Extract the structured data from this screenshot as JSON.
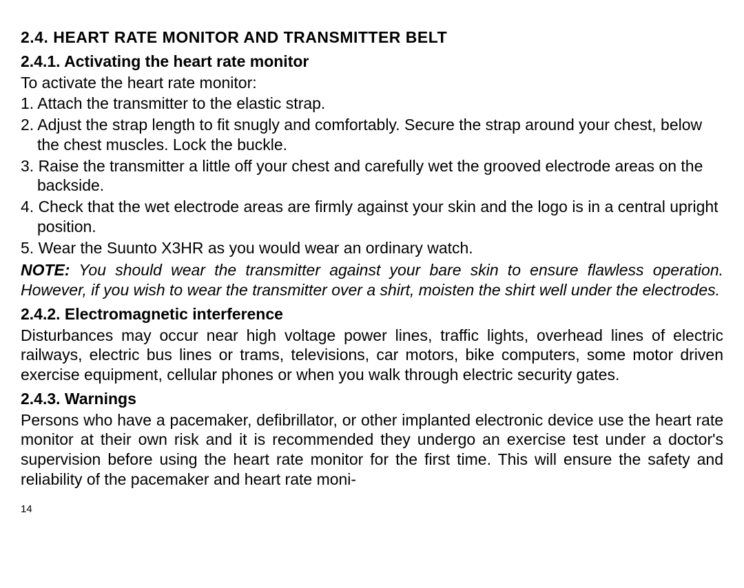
{
  "section": {
    "heading": "2.4. HEART RATE MONITOR AND TRANSMITTER BELT",
    "sub241": {
      "heading": "2.4.1. Activating the heart rate monitor",
      "intro": "To activate the heart rate monitor:",
      "steps": [
        "1. Attach the transmitter to the elastic strap.",
        "2. Adjust the strap length to fit snugly and comfortably. Secure the strap around your chest, below the chest muscles. Lock the buckle.",
        "3. Raise the transmitter a little off your chest and carefully wet the grooved electrode areas on the backside.",
        "4. Check that the wet electrode areas are firmly against your skin and the logo is in a central upright position.",
        "5. Wear the Suunto X3HR as you would wear an ordinary watch."
      ],
      "note_label": "NOTE:",
      "note_body": " You should wear the transmitter against your bare skin to ensure flawless operation. However, if you wish to wear the transmitter over a shirt, moisten the shirt well under the electrodes."
    },
    "sub242": {
      "heading": "2.4.2. Electromagnetic interference",
      "body": "Disturbances may occur near high voltage power lines, traffic lights, overhead lines of electric railways, electric bus lines or trams, televisions, car motors, bike computers, some motor driven exercise equipment, cellular phones or when you walk through electric security gates."
    },
    "sub243": {
      "heading": "2.4.3. Warnings",
      "body": "Persons who have a pacemaker, defibrillator, or other implanted electronic device use the heart rate monitor at their own risk and it is recommended they undergo an exercise test under a doctor's supervision before using the heart rate monitor for the first time. This will ensure the safety and reliability of the pacemaker and heart rate moni-"
    }
  },
  "page_number": "14"
}
